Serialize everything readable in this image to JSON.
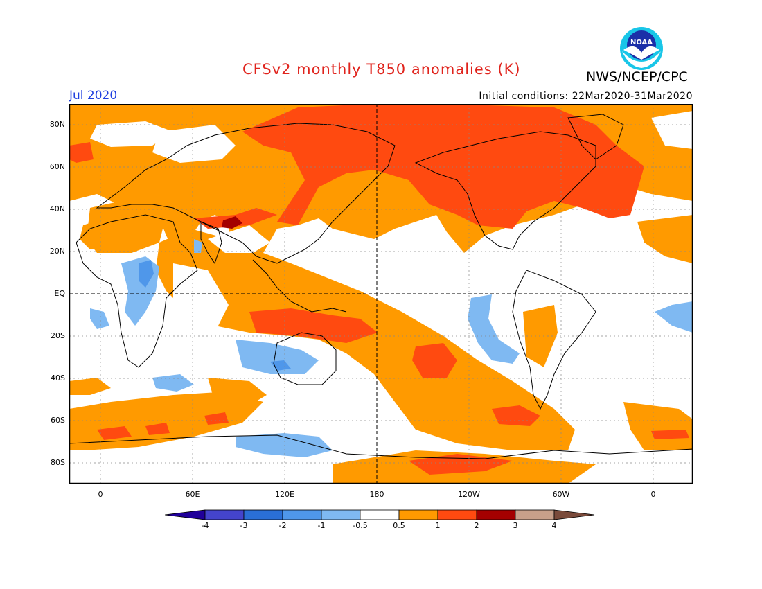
{
  "header": {
    "title": "CFSv2 monthly T850 anomalies (K)",
    "agency": "NWS/NCEP/CPC",
    "month": "Jul 2020",
    "initial_conditions": "Initial conditions: 22Mar2020-31Mar2020",
    "logo_text": "NOAA"
  },
  "axes": {
    "lat_labels": [
      "80N",
      "60N",
      "40N",
      "20N",
      "EQ",
      "20S",
      "40S",
      "60S",
      "80S"
    ],
    "lon_labels": [
      "0",
      "60E",
      "120E",
      "180",
      "120W",
      "60W",
      "0"
    ]
  },
  "colorbar": {
    "labels": [
      "-4",
      "-3",
      "-2",
      "-1",
      "-0.5",
      "0.5",
      "1",
      "2",
      "3",
      "4"
    ],
    "colors": [
      "#20009a",
      "#4444cc",
      "#2a6fd6",
      "#4f97ea",
      "#7fb9f2",
      "#ffffff",
      "#ff9a00",
      "#ff4a10",
      "#a40000",
      "#c8a08a",
      "#7a4a3a"
    ]
  },
  "colors": {
    "warm1": "#ff9a00",
    "warm2": "#ff4a10",
    "warm3": "#a40000",
    "cool1": "#7fb9f2",
    "cool2": "#4f97ea",
    "title": "#e0231c",
    "month": "#1f3fe0"
  }
}
